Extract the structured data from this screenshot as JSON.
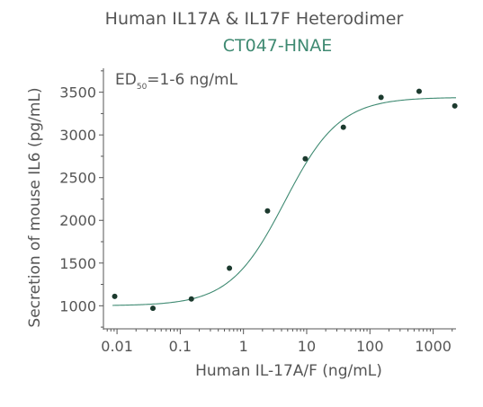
{
  "chart_data": {
    "type": "scatter",
    "title": "Human IL17A & IL17F Heterodimer",
    "subtitle": "CT047-HNAE",
    "annotation": {
      "prefix": "ED",
      "subscript": "50",
      "suffix": "=1-6 ng/mL"
    },
    "xlabel": "Human IL-17A/F (ng/mL)",
    "ylabel": "Secretion of mouse IL6 (pg/mL)",
    "x_scale": "log",
    "xlim": [
      0.0061,
      2300
    ],
    "ylim": [
      730,
      3780
    ],
    "x_ticks": [
      {
        "value": 0.01,
        "label": "0.01"
      },
      {
        "value": 0.1,
        "label": "0.1"
      },
      {
        "value": 1,
        "label": "1"
      },
      {
        "value": 10,
        "label": "10"
      },
      {
        "value": 100,
        "label": "100"
      },
      {
        "value": 1000,
        "label": "1000"
      }
    ],
    "y_ticks": [
      {
        "value": 1000,
        "label": "1000"
      },
      {
        "value": 1500,
        "label": "1500"
      },
      {
        "value": 2000,
        "label": "2000"
      },
      {
        "value": 2500,
        "label": "2500"
      },
      {
        "value": 3000,
        "label": "3000"
      },
      {
        "value": 3500,
        "label": "3500"
      }
    ],
    "points": [
      {
        "x": 0.0092,
        "y": 1110
      },
      {
        "x": 0.037,
        "y": 970
      },
      {
        "x": 0.15,
        "y": 1080
      },
      {
        "x": 0.6,
        "y": 1440
      },
      {
        "x": 2.4,
        "y": 2110
      },
      {
        "x": 9.5,
        "y": 2720
      },
      {
        "x": 38,
        "y": 3090
      },
      {
        "x": 150,
        "y": 3440
      },
      {
        "x": 600,
        "y": 3510
      },
      {
        "x": 2200,
        "y": 3340
      }
    ],
    "fit": {
      "bottom": 1000,
      "top": 3440,
      "ec50": 4.5,
      "hill": 1.0
    },
    "grid": false,
    "colors": {
      "points": "#1c3a2e",
      "fit_line": "#3f8a72",
      "axis": "#555555",
      "subtitle": "#3f8a72"
    }
  }
}
